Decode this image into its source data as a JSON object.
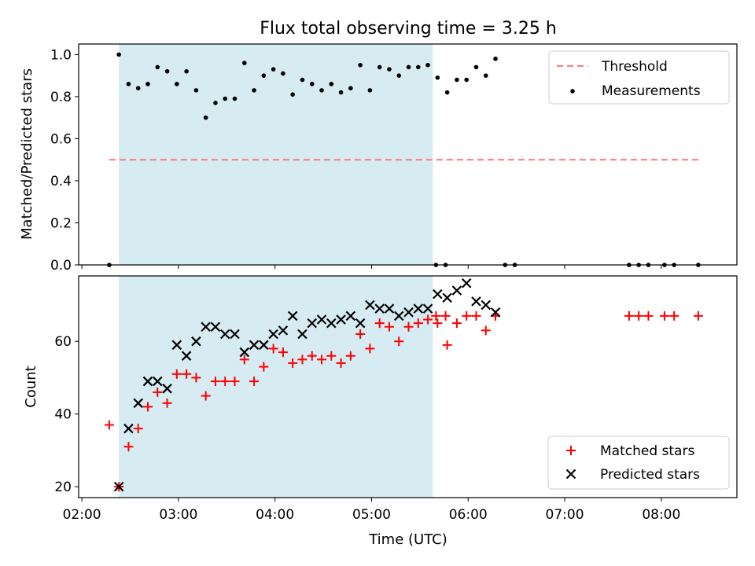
{
  "chart_data": [
    {
      "type": "scatter",
      "title": "Flux total observing time = 3.25 h",
      "xlabel": "",
      "ylabel": "Matched/Predicted stars",
      "ylim": [
        0,
        1.05
      ],
      "yticks": [
        "0.0",
        "0.2",
        "0.4",
        "0.6",
        "0.8",
        "1.0"
      ],
      "shaded_span": {
        "start": "02:23",
        "end": "05:38",
        "color": "#add8e6"
      },
      "legend_position": "top-right",
      "threshold": {
        "name": "Threshold",
        "value": 0.5,
        "x_start": "02:17",
        "x_end": "08:23",
        "color": "#ff7f7f"
      },
      "series": [
        {
          "name": "Measurements",
          "color": "#000000",
          "marker": "dot",
          "x": [
            "02:17",
            "02:23",
            "02:29",
            "02:35",
            "02:41",
            "02:47",
            "02:53",
            "02:59",
            "03:05",
            "03:11",
            "03:17",
            "03:23",
            "03:29",
            "03:35",
            "03:41",
            "03:47",
            "03:53",
            "03:59",
            "04:05",
            "04:11",
            "04:17",
            "04:23",
            "04:29",
            "04:35",
            "04:41",
            "04:47",
            "04:53",
            "04:59",
            "05:05",
            "05:11",
            "05:17",
            "05:23",
            "05:29",
            "05:35",
            "05:41",
            "05:47",
            "05:53",
            "05:59",
            "06:05",
            "06:11",
            "06:17",
            "06:23",
            "06:29",
            "06:35",
            "06:41",
            "06:47",
            "06:53",
            "06:59",
            "07:05",
            "07:11",
            "07:17",
            "07:23",
            "07:29",
            "07:35",
            "07:41",
            "07:47",
            "07:53",
            "07:59",
            "08:05",
            "08:11",
            "08:17",
            "08:23",
            "08:29"
          ],
          "y": [
            0.0,
            1.0,
            0.86,
            0.84,
            0.86,
            0.94,
            0.92,
            0.86,
            0.92,
            0.83,
            0.7,
            0.77,
            0.79,
            0.79,
            0.96,
            0.83,
            0.9,
            0.93,
            0.91,
            0.81,
            0.88,
            0.86,
            0.83,
            0.86,
            0.82,
            0.84,
            0.95,
            0.83,
            0.94,
            0.93,
            0.9,
            0.94,
            0.94,
            0.95,
            0.89,
            0.82,
            0.88,
            0.88,
            0.94,
            0.9,
            0.98,
            0.0,
            0.0,
            null,
            null,
            null,
            null,
            null,
            null,
            null,
            null,
            null,
            null,
            null,
            null,
            null,
            null,
            null,
            null,
            null,
            null,
            null,
            null
          ]
        }
      ],
      "extra_zero_points_x": [
        "05:40",
        "05:46",
        "07:40",
        "07:46",
        "07:52",
        "08:02",
        "08:08",
        "08:23"
      ]
    },
    {
      "type": "scatter",
      "title": "",
      "xlabel": "Time (UTC)",
      "ylabel": "Count",
      "ylim": [
        17,
        78
      ],
      "yticks": [
        "20",
        "40",
        "60"
      ],
      "xticks": [
        "02:00",
        "03:00",
        "04:00",
        "05:00",
        "06:00",
        "07:00",
        "08:00"
      ],
      "shaded_span": {
        "start": "02:23",
        "end": "05:38",
        "color": "#add8e6"
      },
      "legend_position": "bottom-right",
      "series": [
        {
          "name": "Matched stars",
          "color": "#ff0000",
          "marker": "plus",
          "points": [
            [
              "02:17",
              37
            ],
            [
              "02:23",
              20
            ],
            [
              "02:29",
              31
            ],
            [
              "02:35",
              36
            ],
            [
              "02:41",
              42
            ],
            [
              "02:47",
              46
            ],
            [
              "02:53",
              43
            ],
            [
              "02:59",
              51
            ],
            [
              "03:05",
              51
            ],
            [
              "03:11",
              50
            ],
            [
              "03:17",
              45
            ],
            [
              "03:23",
              49
            ],
            [
              "03:29",
              49
            ],
            [
              "03:35",
              49
            ],
            [
              "03:41",
              55
            ],
            [
              "03:47",
              49
            ],
            [
              "03:53",
              53
            ],
            [
              "03:59",
              58
            ],
            [
              "04:05",
              57
            ],
            [
              "04:11",
              54
            ],
            [
              "04:17",
              55
            ],
            [
              "04:23",
              56
            ],
            [
              "04:29",
              55
            ],
            [
              "04:35",
              56
            ],
            [
              "04:41",
              54
            ],
            [
              "04:47",
              56
            ],
            [
              "04:53",
              62
            ],
            [
              "04:59",
              58
            ],
            [
              "05:05",
              65
            ],
            [
              "05:11",
              64
            ],
            [
              "05:17",
              60
            ],
            [
              "05:23",
              64
            ],
            [
              "05:29",
              65
            ],
            [
              "05:35",
              66
            ],
            [
              "05:41",
              65
            ],
            [
              "05:47",
              59
            ],
            [
              "05:53",
              65
            ],
            [
              "05:59",
              67
            ],
            [
              "06:05",
              67
            ],
            [
              "06:11",
              63
            ],
            [
              "06:17",
              67
            ],
            [
              "05:40",
              67
            ],
            [
              "05:46",
              67
            ],
            [
              "07:40",
              67
            ],
            [
              "07:46",
              67
            ],
            [
              "07:52",
              67
            ],
            [
              "08:02",
              67
            ],
            [
              "08:08",
              67
            ],
            [
              "08:23",
              67
            ]
          ]
        },
        {
          "name": "Predicted stars",
          "color": "#000000",
          "marker": "x",
          "points": [
            [
              "02:23",
              20
            ],
            [
              "02:29",
              36
            ],
            [
              "02:35",
              43
            ],
            [
              "02:41",
              49
            ],
            [
              "02:47",
              49
            ],
            [
              "02:53",
              47
            ],
            [
              "02:59",
              59
            ],
            [
              "03:05",
              56
            ],
            [
              "03:11",
              60
            ],
            [
              "03:17",
              64
            ],
            [
              "03:23",
              64
            ],
            [
              "03:29",
              62
            ],
            [
              "03:35",
              62
            ],
            [
              "03:41",
              57
            ],
            [
              "03:47",
              59
            ],
            [
              "03:53",
              59
            ],
            [
              "03:59",
              62
            ],
            [
              "04:05",
              63
            ],
            [
              "04:11",
              67
            ],
            [
              "04:17",
              62
            ],
            [
              "04:23",
              65
            ],
            [
              "04:29",
              66
            ],
            [
              "04:35",
              65
            ],
            [
              "04:41",
              66
            ],
            [
              "04:47",
              67
            ],
            [
              "04:53",
              65
            ],
            [
              "04:59",
              70
            ],
            [
              "05:05",
              69
            ],
            [
              "05:11",
              69
            ],
            [
              "05:17",
              67
            ],
            [
              "05:23",
              68
            ],
            [
              "05:29",
              69
            ],
            [
              "05:35",
              69
            ],
            [
              "05:41",
              73
            ],
            [
              "05:47",
              72
            ],
            [
              "05:53",
              74
            ],
            [
              "05:59",
              76
            ],
            [
              "06:05",
              71
            ],
            [
              "06:11",
              70
            ],
            [
              "06:17",
              68
            ]
          ]
        }
      ]
    }
  ]
}
